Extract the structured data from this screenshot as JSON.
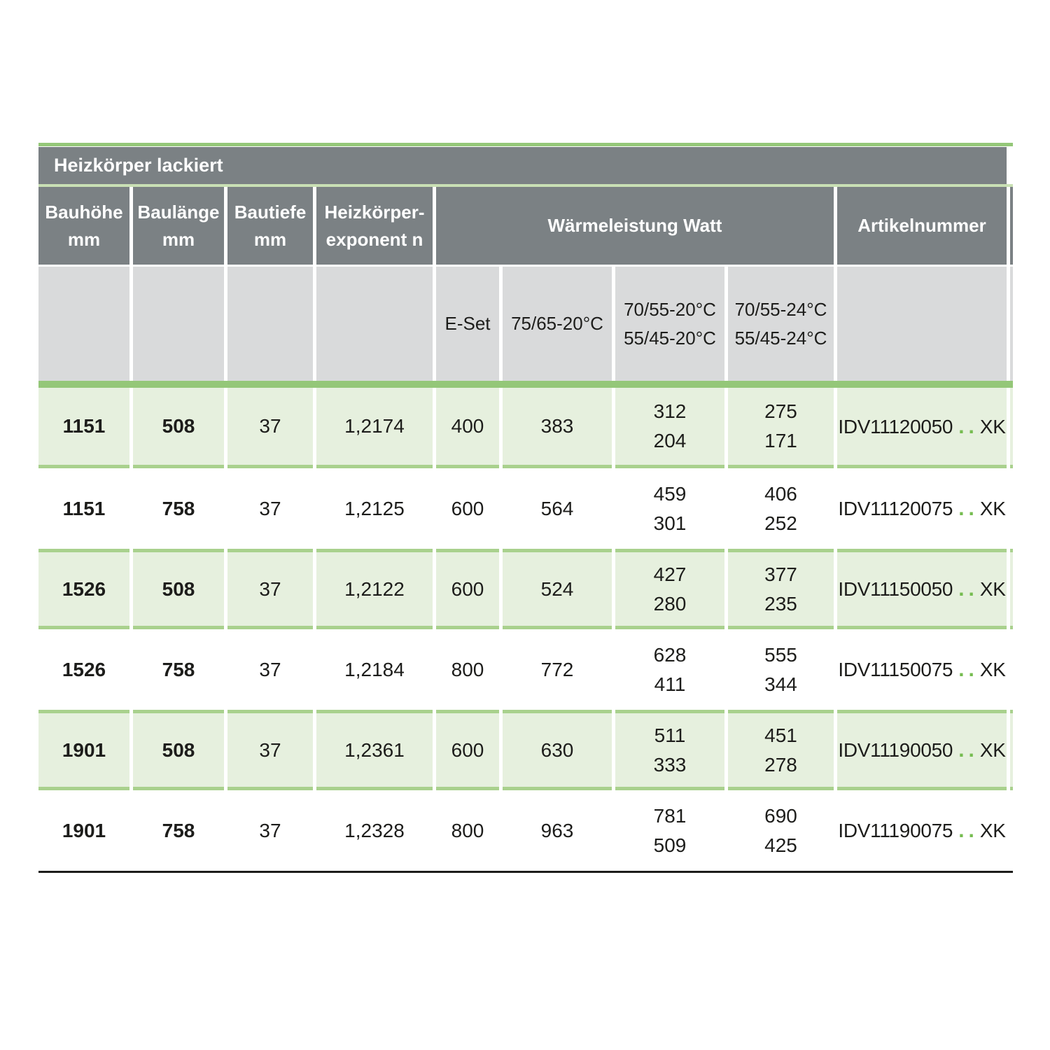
{
  "title": "Heizkörper lackiert",
  "header": {
    "bauhoehe": {
      "line1": "Bauhöhe",
      "line2": "mm"
    },
    "baulaenge": {
      "line1": "Baulänge",
      "line2": "mm"
    },
    "bautiefe": {
      "line1": "Bautiefe",
      "line2": "mm"
    },
    "exponent": {
      "line1": "Heizkörper-",
      "line2": "exponent n"
    },
    "waermeleistung": "Wärmeleistung Watt",
    "artikelnummer": "Artikelnummer"
  },
  "subheader": {
    "eset": "E-Set",
    "t7565": "75/65-20°C",
    "t20": {
      "line1": "70/55-20°C",
      "line2": "55/45-20°C"
    },
    "t24": {
      "line1": "70/55-24°C",
      "line2": "55/45-24°C"
    }
  },
  "rows": [
    {
      "bauhoehe": "1151",
      "baulaenge": "508",
      "bautiefe": "37",
      "exponent": "1,2174",
      "eset": "400",
      "w7565": "383",
      "w20": {
        "line1": "312",
        "line2": "204"
      },
      "w24": {
        "line1": "275",
        "line2": "171"
      },
      "artikel": {
        "prefix": "IDV11120050",
        "dots": "..",
        "suffix": "XK"
      }
    },
    {
      "bauhoehe": "1151",
      "baulaenge": "758",
      "bautiefe": "37",
      "exponent": "1,2125",
      "eset": "600",
      "w7565": "564",
      "w20": {
        "line1": "459",
        "line2": "301"
      },
      "w24": {
        "line1": "406",
        "line2": "252"
      },
      "artikel": {
        "prefix": "IDV11120075",
        "dots": "..",
        "suffix": "XK"
      }
    },
    {
      "bauhoehe": "1526",
      "baulaenge": "508",
      "bautiefe": "37",
      "exponent": "1,2122",
      "eset": "600",
      "w7565": "524",
      "w20": {
        "line1": "427",
        "line2": "280"
      },
      "w24": {
        "line1": "377",
        "line2": "235"
      },
      "artikel": {
        "prefix": "IDV11150050",
        "dots": "..",
        "suffix": "XK"
      }
    },
    {
      "bauhoehe": "1526",
      "baulaenge": "758",
      "bautiefe": "37",
      "exponent": "1,2184",
      "eset": "800",
      "w7565": "772",
      "w20": {
        "line1": "628",
        "line2": "411"
      },
      "w24": {
        "line1": "555",
        "line2": "344"
      },
      "artikel": {
        "prefix": "IDV11150075",
        "dots": "..",
        "suffix": "XK"
      }
    },
    {
      "bauhoehe": "1901",
      "baulaenge": "508",
      "bautiefe": "37",
      "exponent": "1,2361",
      "eset": "600",
      "w7565": "630",
      "w20": {
        "line1": "511",
        "line2": "333"
      },
      "w24": {
        "line1": "451",
        "line2": "278"
      },
      "artikel": {
        "prefix": "IDV11190050",
        "dots": "..",
        "suffix": "XK"
      }
    },
    {
      "bauhoehe": "1901",
      "baulaenge": "758",
      "bautiefe": "37",
      "exponent": "1,2328",
      "eset": "800",
      "w7565": "963",
      "w20": {
        "line1": "781",
        "line2": "509"
      },
      "w24": {
        "line1": "690",
        "line2": "425"
      },
      "artikel": {
        "prefix": "IDV11190075",
        "dots": "..",
        "suffix": "XK"
      }
    }
  ],
  "colors": {
    "header-gray": "#7b8184",
    "subheader-gray": "#d9dadb",
    "row-green": "#e6f0de",
    "accent-green": "#94c778",
    "row-border-green": "#a9d18d",
    "thin-line-green": "#c9e0b4",
    "dot-green": "#76bc51",
    "text-dark": "#1d1d1b"
  }
}
